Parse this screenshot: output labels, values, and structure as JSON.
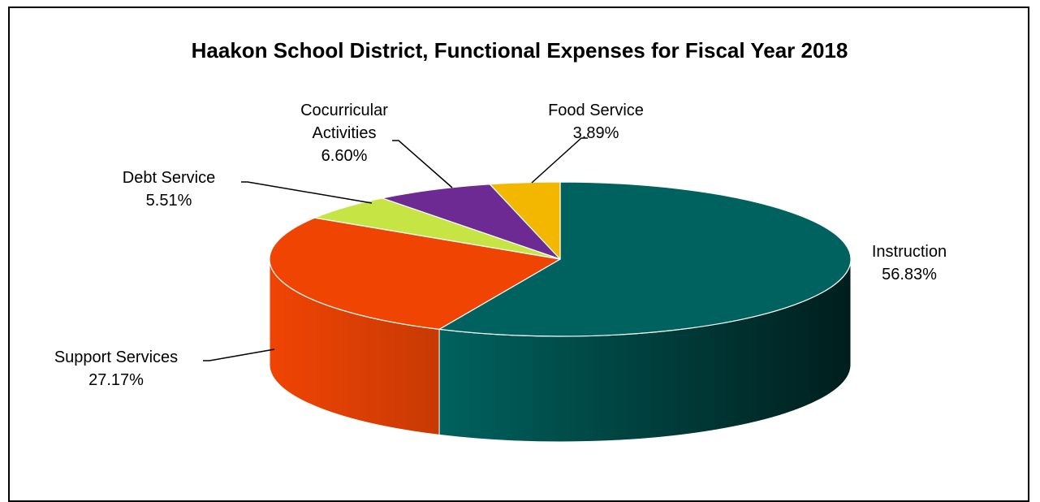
{
  "chart_data": {
    "type": "pie",
    "title": "Haakon School District, Functional Expenses for Fiscal Year 2018",
    "slices": [
      {
        "name": "Instruction",
        "value": 56.83,
        "label": "56.83%",
        "color": "#00625E"
      },
      {
        "name": "Support Services",
        "value": 27.17,
        "label": "27.17%",
        "color": "#F04403"
      },
      {
        "name": "Debt Service",
        "value": 5.51,
        "label": "5.51%",
        "color": "#C6E444"
      },
      {
        "name": "Cocurricular Activities",
        "value": 6.6,
        "label": "6.60%",
        "color": "#6E2A93"
      },
      {
        "name": "Food Service",
        "value": 3.89,
        "label": "3.89%",
        "color": "#F3B700"
      }
    ],
    "start_angle_deg": 0,
    "direction": "clockwise",
    "style": "3d-tilted",
    "legend": "none"
  }
}
